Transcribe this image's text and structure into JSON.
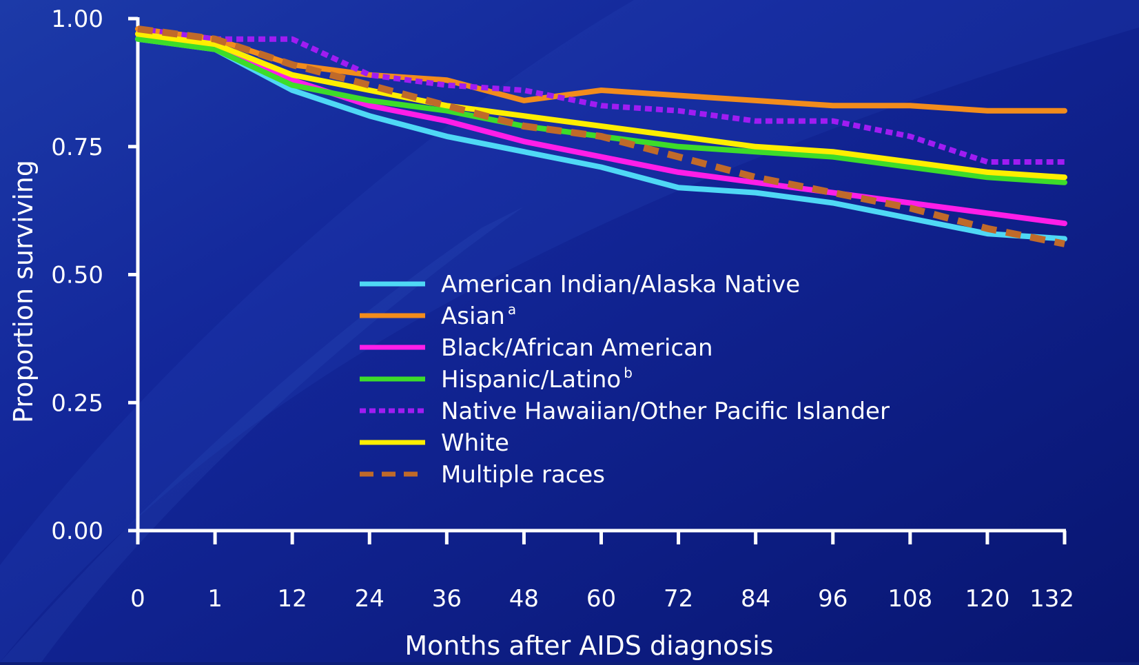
{
  "colors": {
    "background": "#0d1e78",
    "axis": "#ffffff",
    "text": "#ffffff"
  },
  "chart_data": {
    "type": "line",
    "xlabel": "Months after AIDS diagnosis",
    "ylabel": "Proportion surviving",
    "x_ticks": [
      "0",
      "1",
      "12",
      "24",
      "36",
      "48",
      "60",
      "72",
      "84",
      "96",
      "108",
      "120",
      "132"
    ],
    "y_ticks": [
      "0.00",
      "0.25",
      "0.50",
      "0.75",
      "1.00"
    ],
    "ylim": [
      0,
      1
    ],
    "grid": false,
    "legend_position": "center",
    "series": [
      {
        "name": "American Indian/Alaska Native",
        "color": "#4fd8f5",
        "dash": "solid",
        "values": [
          0.96,
          0.94,
          0.86,
          0.81,
          0.77,
          0.74,
          0.71,
          0.67,
          0.66,
          0.64,
          0.61,
          0.58,
          0.57
        ]
      },
      {
        "name": "Asian",
        "superscript": "a",
        "color": "#f28c1c",
        "dash": "solid",
        "values": [
          0.98,
          0.96,
          0.91,
          0.89,
          0.88,
          0.84,
          0.86,
          0.85,
          0.84,
          0.83,
          0.83,
          0.82,
          0.82
        ]
      },
      {
        "name": "Black/African American",
        "color": "#ff1ee8",
        "dash": "solid",
        "values": [
          0.97,
          0.95,
          0.88,
          0.83,
          0.8,
          0.76,
          0.73,
          0.7,
          0.68,
          0.66,
          0.64,
          0.62,
          0.6
        ]
      },
      {
        "name": "Hispanic/Latino",
        "superscript": "b",
        "color": "#3ddc2a",
        "dash": "solid",
        "values": [
          0.96,
          0.94,
          0.87,
          0.84,
          0.82,
          0.79,
          0.77,
          0.75,
          0.74,
          0.73,
          0.71,
          0.69,
          0.68
        ]
      },
      {
        "name": "Native Hawaiian/Other Pacific Islander",
        "color": "#a01cf2",
        "dash": "dotted",
        "values": [
          0.98,
          0.96,
          0.96,
          0.89,
          0.87,
          0.86,
          0.83,
          0.82,
          0.8,
          0.8,
          0.77,
          0.72,
          0.72
        ]
      },
      {
        "name": "White",
        "color": "#ffee00",
        "dash": "solid",
        "values": [
          0.97,
          0.95,
          0.89,
          0.86,
          0.83,
          0.81,
          0.79,
          0.77,
          0.75,
          0.74,
          0.72,
          0.7,
          0.69
        ]
      },
      {
        "name": "Multiple races",
        "color": "#c06a2a",
        "dash": "dashed",
        "values": [
          0.98,
          0.96,
          0.91,
          0.87,
          0.83,
          0.79,
          0.77,
          0.73,
          0.69,
          0.66,
          0.63,
          0.59,
          0.56
        ]
      }
    ]
  }
}
